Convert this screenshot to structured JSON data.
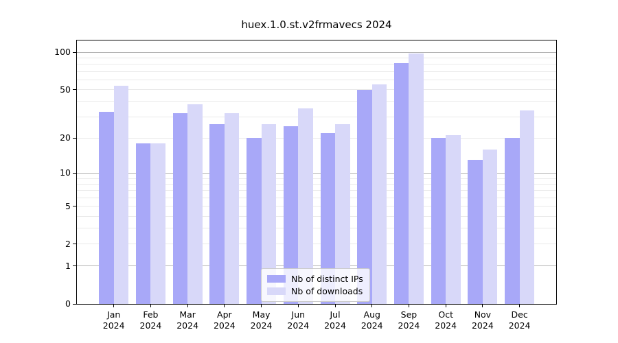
{
  "chart_data": {
    "type": "bar",
    "title": "huex.1.0.st.v2frmavecs 2024",
    "categories": [
      "Jan",
      "Feb",
      "Mar",
      "Apr",
      "May",
      "Jun",
      "Jul",
      "Aug",
      "Sep",
      "Oct",
      "Nov",
      "Dec"
    ],
    "x_year_line": "2024",
    "series": [
      {
        "name": "Nb of distinct IPs",
        "color": "#a8a8f8",
        "values": [
          33,
          18,
          32,
          26,
          20,
          25,
          22,
          50,
          82,
          20,
          13,
          20
        ]
      },
      {
        "name": "Nb of downloads",
        "color": "#d8d8f9",
        "values": [
          54,
          18,
          38,
          32,
          26,
          35,
          26,
          55,
          98,
          21,
          16,
          34
        ]
      }
    ],
    "yscale": "log10(1+x)",
    "ylim": [
      0,
      124.6
    ],
    "y_ticks_labeled": [
      0,
      1,
      2,
      5,
      10,
      20,
      50,
      100
    ],
    "y_gridlines_major": [
      1,
      10,
      100
    ],
    "y_gridlines_minor": [
      2,
      3,
      4,
      5,
      6,
      7,
      8,
      9,
      20,
      30,
      40,
      50,
      60,
      70,
      80,
      90
    ],
    "grid": true,
    "legend_position": "inside lower-center of plot"
  },
  "colors": {
    "bar_distinct_ips": "#a8a8f8",
    "bar_downloads": "#d8d8f9",
    "grid_major": "#b3b3b3",
    "grid_minor": "#e9e9e9",
    "axis_spine": "#000000",
    "legend_border": "#cccccc"
  }
}
